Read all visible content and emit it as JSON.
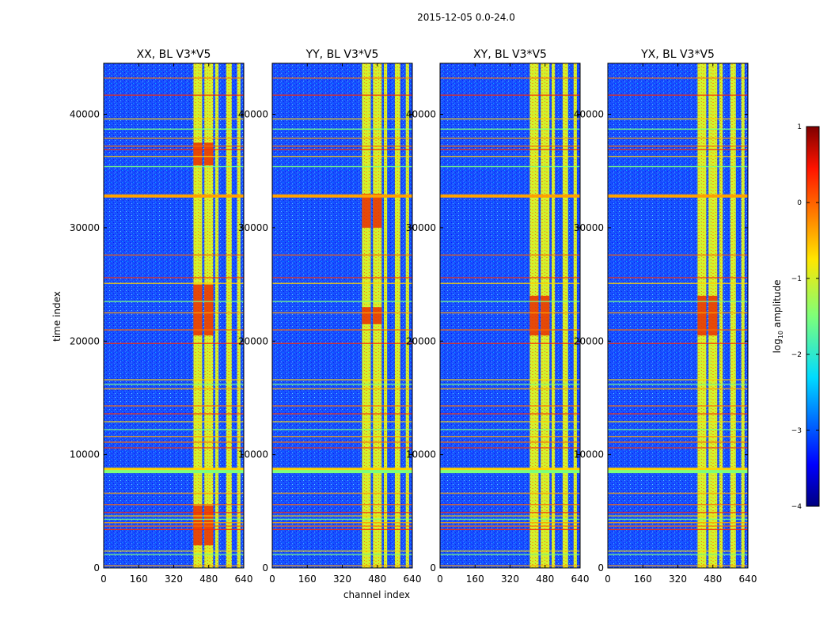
{
  "chart_data": {
    "type": "heatmap",
    "suptitle": "2015-12-05 0.0-24.0",
    "xlabel": "channel index",
    "ylabel": "time index",
    "xlim": [
      0,
      640
    ],
    "ylim": [
      0,
      44500
    ],
    "x_ticks": [
      0,
      160,
      320,
      480,
      640
    ],
    "y_ticks": [
      0,
      10000,
      20000,
      30000,
      40000
    ],
    "panels": [
      {
        "title": "XX, BL V3*V5",
        "strong_blocks": [
          [
            20500,
            25000
          ],
          [
            35500,
            37500
          ],
          [
            2000,
            5500
          ]
        ]
      },
      {
        "title": "YY, BL V3*V5",
        "strong_blocks": [
          [
            21500,
            23000
          ],
          [
            30000,
            33000
          ]
        ]
      },
      {
        "title": "XY, BL V3*V5",
        "strong_blocks": [
          [
            20500,
            24000
          ]
        ]
      },
      {
        "title": "YX, BL V3*V5",
        "strong_blocks": [
          [
            20500,
            24000
          ]
        ]
      }
    ],
    "rfi_column_bands": [
      [
        410,
        450
      ],
      [
        460,
        500
      ],
      [
        510,
        525
      ],
      [
        560,
        585
      ],
      [
        610,
        625
      ]
    ],
    "rfi_row_times": [
      43200,
      41700,
      39600,
      38700,
      37900,
      37200,
      36900,
      36300,
      35400,
      32800,
      27600,
      25600,
      25100,
      23500,
      22500,
      21000,
      19800,
      16600,
      16200,
      15800,
      14300,
      13600,
      12900,
      12200,
      11600,
      11100,
      10600,
      8700,
      8500,
      6600,
      5600,
      4900,
      4600,
      4300,
      4000,
      3700,
      3400,
      1500,
      1200,
      200
    ],
    "colorbar": {
      "label": "log",
      "label_subscript": "10",
      "label_suffix": " amplitude",
      "ticks": [
        "1",
        "0",
        "−1",
        "−2",
        "−3",
        "−4"
      ],
      "range": [
        -4,
        1
      ],
      "colormap": "jet"
    }
  }
}
